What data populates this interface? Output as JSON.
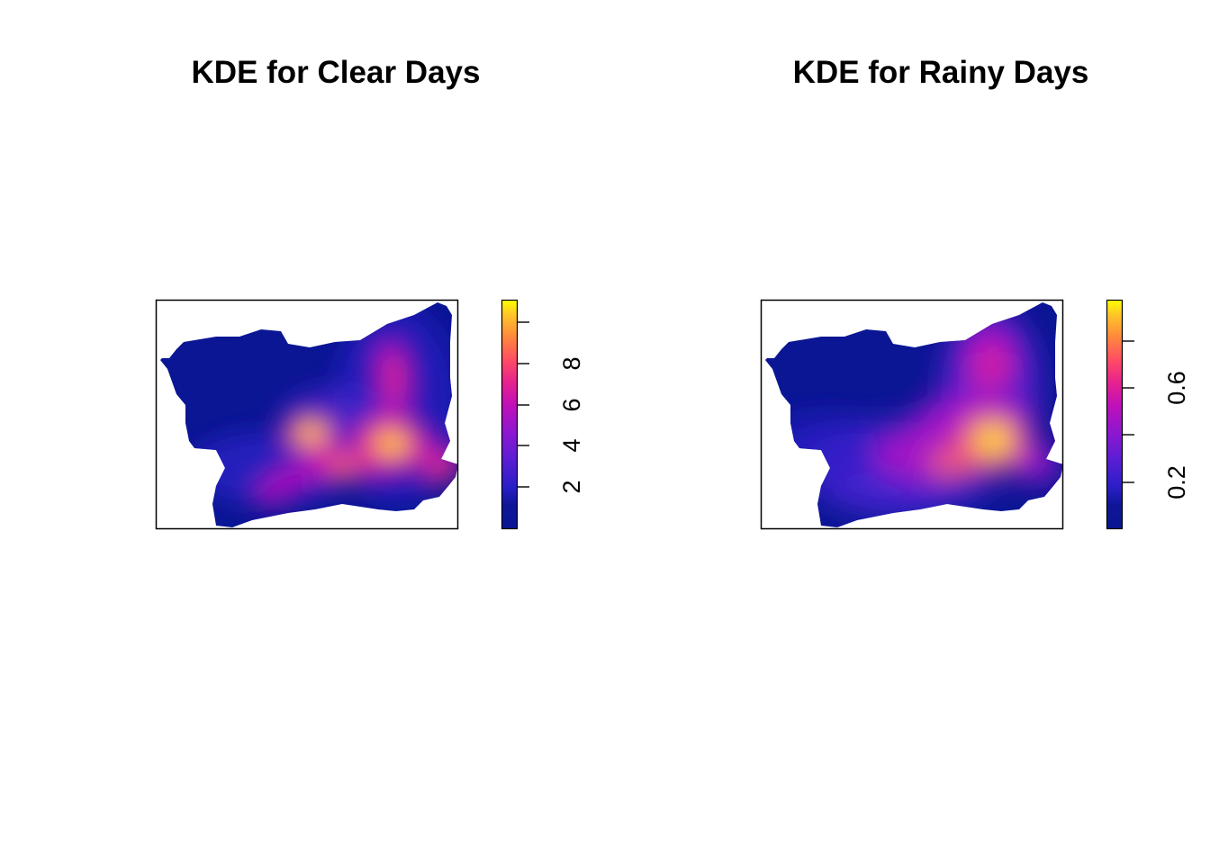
{
  "chart_data": [
    {
      "type": "heatmap",
      "title": "KDE for Clear Days",
      "colorbar": {
        "ticks": [
          2,
          4,
          6,
          8
        ],
        "range": [
          0,
          11
        ]
      },
      "hotspots": [
        {
          "x": 0.83,
          "y": 0.63,
          "value": 10.5
        },
        {
          "x": 0.52,
          "y": 0.59,
          "value": 9.0
        },
        {
          "x": 0.62,
          "y": 0.74,
          "value": 6.5
        },
        {
          "x": 0.78,
          "y": 0.42,
          "value": 4.5
        },
        {
          "x": 0.44,
          "y": 0.86,
          "value": 3.0
        },
        {
          "x": 0.96,
          "y": 0.74,
          "value": 4.0
        },
        {
          "x": 0.56,
          "y": 0.4,
          "value": 2.0
        }
      ],
      "colors": [
        "#0a1694",
        "#1c1ab4",
        "#4b22ce",
        "#8a1ad0",
        "#c411b4",
        "#ec2c88",
        "#ff5c55",
        "#ff9a38",
        "#ffd727",
        "#ffff00"
      ]
    },
    {
      "type": "heatmap",
      "title": "KDE for Rainy Days",
      "colorbar": {
        "ticks": [
          0.2,
          0.6
        ],
        "minor_ticks": [
          0.4,
          0.8
        ],
        "range": [
          0,
          0.88
        ]
      },
      "hotspots": [
        {
          "x": 0.77,
          "y": 0.64,
          "value": 0.86
        },
        {
          "x": 0.76,
          "y": 0.29,
          "value": 0.55
        },
        {
          "x": 0.62,
          "y": 0.73,
          "value": 0.5
        },
        {
          "x": 0.45,
          "y": 0.66,
          "value": 0.35
        },
        {
          "x": 0.34,
          "y": 0.82,
          "value": 0.3
        },
        {
          "x": 0.18,
          "y": 0.61,
          "value": 0.22
        },
        {
          "x": 0.9,
          "y": 0.75,
          "value": 0.3
        }
      ],
      "colors": [
        "#0a1694",
        "#1c1ab4",
        "#4b22ce",
        "#8a1ad0",
        "#c411b4",
        "#ec2c88",
        "#ff5c55",
        "#ff9a38",
        "#ffd727",
        "#ffff00"
      ]
    }
  ]
}
